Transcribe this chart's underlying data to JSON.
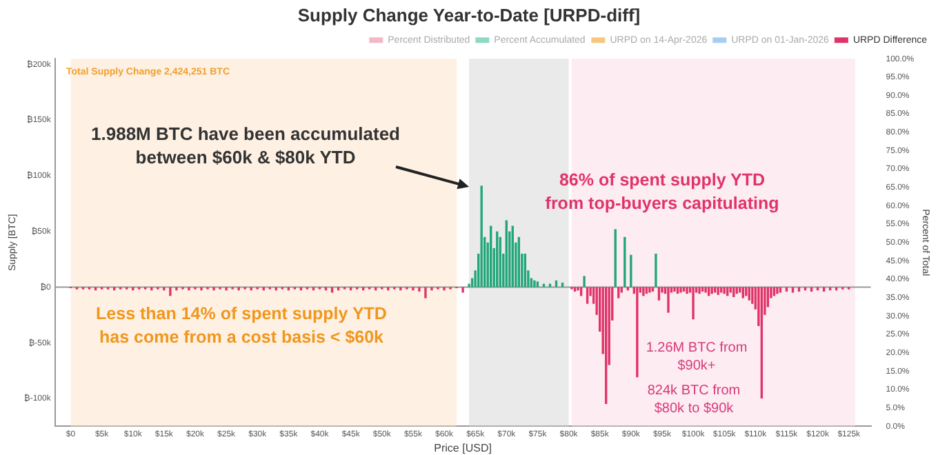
{
  "chart_data": {
    "type": "bar",
    "title": "Supply Change Year-to-Date [URPD-diff]",
    "xlabel": "Price [USD]",
    "ylabel": "Supply [BTC]",
    "y2label": "Percent of Total",
    "x": [
      0,
      1000,
      2000,
      3000,
      4000,
      5000,
      6000,
      7000,
      8000,
      9000,
      10000,
      11000,
      12000,
      13000,
      14000,
      15000,
      16000,
      17000,
      18000,
      19000,
      20000,
      21000,
      22000,
      23000,
      24000,
      25000,
      26000,
      27000,
      28000,
      29000,
      30000,
      31000,
      32000,
      33000,
      34000,
      35000,
      36000,
      37000,
      38000,
      39000,
      40000,
      41000,
      42000,
      43000,
      44000,
      45000,
      46000,
      47000,
      48000,
      49000,
      50000,
      51000,
      52000,
      53000,
      54000,
      55000,
      56000,
      57000,
      58000,
      59000,
      60000,
      61000,
      62000,
      63000,
      64000,
      64500,
      65000,
      65500,
      66000,
      66500,
      67000,
      67500,
      68000,
      68500,
      69000,
      69500,
      70000,
      70500,
      71000,
      71500,
      72000,
      72500,
      73000,
      73500,
      74000,
      74500,
      75000,
      76000,
      77000,
      78000,
      79000,
      80500,
      81000,
      81500,
      82000,
      82500,
      83000,
      83500,
      84000,
      84500,
      85000,
      85500,
      86000,
      86500,
      87000,
      87500,
      88000,
      88500,
      89000,
      89500,
      90000,
      90500,
      91000,
      91500,
      92000,
      92500,
      93000,
      93500,
      94000,
      94500,
      95000,
      95500,
      96000,
      96500,
      97000,
      97500,
      98000,
      98500,
      99000,
      99500,
      100000,
      100500,
      101000,
      101500,
      102000,
      102500,
      103000,
      103500,
      104000,
      104500,
      105000,
      105500,
      106000,
      106500,
      107000,
      107500,
      108000,
      108500,
      109000,
      109500,
      110000,
      110500,
      111000,
      111500,
      112000,
      112500,
      113000,
      113500,
      114000,
      115000,
      116000,
      117000,
      118000,
      119000,
      120000,
      121000,
      122000,
      123000,
      124000,
      125000
    ],
    "series": [
      {
        "name": "Percent Distributed",
        "type": "line",
        "color": "#f2b8c6",
        "values": [
          null,
          null,
          null,
          null,
          null,
          null,
          null,
          null,
          null,
          null,
          null,
          null,
          null,
          null,
          null,
          null,
          null,
          null,
          null,
          null,
          null,
          null,
          null,
          null,
          null,
          null,
          null,
          null,
          null,
          null,
          null,
          null,
          null,
          null,
          null,
          null,
          null,
          null,
          null,
          null,
          null,
          null,
          null,
          null,
          null,
          null,
          null,
          null,
          null,
          null,
          null,
          null,
          null,
          null,
          null,
          null,
          null,
          null,
          null,
          null,
          null,
          null,
          null,
          null,
          null,
          null,
          null,
          null,
          null,
          null,
          null,
          null,
          null,
          null,
          null,
          null,
          null,
          null,
          null,
          null,
          null,
          null,
          null,
          null,
          null,
          null,
          null,
          null,
          null,
          null,
          null,
          null,
          null,
          null,
          null,
          null,
          null,
          null,
          null,
          null,
          null,
          null,
          null,
          null,
          null,
          null,
          null,
          null,
          null,
          null,
          null,
          null,
          null,
          null,
          null,
          null,
          null,
          null,
          null,
          null,
          null,
          null,
          null,
          null,
          null,
          null,
          null,
          null,
          null,
          null,
          null,
          null,
          null,
          null,
          null,
          null,
          null,
          null,
          null,
          null,
          null,
          null,
          null,
          null,
          null,
          null,
          null,
          null,
          null,
          null,
          null,
          null,
          null,
          null,
          null,
          null,
          null,
          null,
          null,
          null,
          null,
          null,
          null,
          null,
          null,
          null,
          null,
          null,
          null,
          null
        ]
      },
      {
        "name": "Percent Accumulated",
        "type": "line",
        "color": "#8fd8c4",
        "values": [
          null,
          null,
          null,
          null,
          null,
          null,
          null,
          null,
          null,
          null,
          null,
          null,
          null,
          null,
          null,
          null,
          null,
          null,
          null,
          null,
          null,
          null,
          null,
          null,
          null,
          null,
          null,
          null,
          null,
          null,
          null,
          null,
          null,
          null,
          null,
          null,
          null,
          null,
          null,
          null,
          null,
          null,
          null,
          null,
          null,
          null,
          null,
          null,
          null,
          null,
          null,
          null,
          null,
          null,
          null,
          null,
          null,
          null,
          null,
          null,
          null,
          null,
          null,
          null,
          null,
          null,
          null,
          null,
          null,
          null,
          null,
          null,
          null,
          null,
          null,
          null,
          null,
          null,
          null,
          null,
          null,
          null,
          null,
          null,
          null,
          null,
          null,
          null,
          null,
          null,
          null,
          null,
          null,
          null,
          null,
          null,
          null,
          null,
          null,
          null,
          null,
          null,
          null,
          null,
          null,
          null,
          null,
          null,
          null,
          null,
          null,
          null,
          null,
          null,
          null,
          null,
          null,
          null,
          null,
          null,
          null,
          null,
          null,
          null,
          null,
          null,
          null,
          null,
          null,
          null,
          null,
          null,
          null,
          null,
          null,
          null,
          null,
          null,
          null,
          null,
          null,
          null,
          null,
          null,
          null,
          null,
          null,
          null,
          null,
          null,
          null,
          null,
          null,
          null,
          null,
          null,
          null,
          null,
          null,
          null,
          null,
          null,
          null,
          null,
          null,
          null,
          null,
          null,
          null,
          null
        ]
      },
      {
        "name": "URPD on 14-Apr-2026",
        "type": "line",
        "color": "#f7c77e",
        "values": [
          null,
          null,
          null,
          null,
          null,
          null,
          null,
          null,
          null,
          null,
          null,
          null,
          null,
          null,
          null,
          null,
          null,
          null,
          null,
          null,
          null,
          null,
          null,
          null,
          null,
          null,
          null,
          null,
          null,
          null,
          null,
          null,
          null,
          null,
          null,
          null,
          null,
          null,
          null,
          null,
          null,
          null,
          null,
          null,
          null,
          null,
          null,
          null,
          null,
          null,
          null,
          null,
          null,
          null,
          null,
          null,
          null,
          null,
          null,
          null,
          null,
          null,
          null,
          null,
          null,
          null,
          null,
          null,
          null,
          null,
          null,
          null,
          null,
          null,
          null,
          null,
          null,
          null,
          null,
          null,
          null,
          null,
          null,
          null,
          null,
          null,
          null,
          null,
          null,
          null,
          null,
          null,
          null,
          null,
          null,
          null,
          null,
          null,
          null,
          null,
          null,
          null,
          null,
          null,
          null,
          null,
          null,
          null,
          null,
          null,
          null,
          null,
          null,
          null,
          null,
          null,
          null,
          null,
          null,
          null,
          null,
          null,
          null,
          null,
          null,
          null,
          null,
          null,
          null,
          null,
          null,
          null,
          null,
          null,
          null,
          null,
          null,
          null,
          null,
          null,
          null,
          null,
          null,
          null,
          null,
          null,
          null,
          null,
          null,
          null,
          null,
          null,
          null,
          null,
          null,
          null,
          null,
          null,
          null,
          null,
          null,
          null,
          null,
          null,
          null,
          null,
          null,
          null,
          null,
          null
        ]
      },
      {
        "name": "URPD on 01-Jan-2026",
        "type": "line",
        "color": "#a9cdf0",
        "values": [
          null,
          null,
          null,
          null,
          null,
          null,
          null,
          null,
          null,
          null,
          null,
          null,
          null,
          null,
          null,
          null,
          null,
          null,
          null,
          null,
          null,
          null,
          null,
          null,
          null,
          null,
          null,
          null,
          null,
          null,
          null,
          null,
          null,
          null,
          null,
          null,
          null,
          null,
          null,
          null,
          null,
          null,
          null,
          null,
          null,
          null,
          null,
          null,
          null,
          null,
          null,
          null,
          null,
          null,
          null,
          null,
          null,
          null,
          null,
          null,
          null,
          null,
          null,
          null,
          null,
          null,
          null,
          null,
          null,
          null,
          null,
          null,
          null,
          null,
          null,
          null,
          null,
          null,
          null,
          null,
          null,
          null,
          null,
          null,
          null,
          null,
          null,
          null,
          null,
          null,
          null,
          null,
          null,
          null,
          null,
          null,
          null,
          null,
          null,
          null,
          null,
          null,
          null,
          null,
          null,
          null,
          null,
          null,
          null,
          null,
          null,
          null,
          null,
          null,
          null,
          null,
          null,
          null,
          null,
          null,
          null,
          null,
          null,
          null,
          null,
          null,
          null,
          null,
          null,
          null,
          null,
          null,
          null,
          null,
          null,
          null,
          null,
          null,
          null,
          null,
          null,
          null,
          null,
          null,
          null,
          null,
          null,
          null,
          null,
          null,
          null,
          null,
          null,
          null,
          null,
          null,
          null,
          null,
          null,
          null,
          null,
          null,
          null,
          null,
          null,
          null,
          null,
          null,
          null,
          null
        ]
      },
      {
        "name": "URPD Difference",
        "color": "#e0336a",
        "values": [
          -1000,
          -2000,
          -2000,
          -2000,
          -3000,
          -2000,
          -2000,
          -3000,
          -2000,
          -2000,
          -3000,
          -2000,
          -2000,
          -3000,
          -2000,
          -3000,
          -8000,
          -3000,
          -2000,
          -3000,
          -2000,
          -3000,
          -2000,
          -3000,
          -2000,
          -3000,
          -2000,
          -3000,
          -2000,
          -3000,
          -2000,
          -3000,
          -2000,
          -3000,
          -2000,
          -3000,
          -2000,
          -3000,
          -2000,
          -3000,
          -2000,
          -3000,
          -5000,
          -3000,
          -2000,
          -3000,
          -2000,
          -3000,
          -2000,
          -3000,
          -2000,
          -3000,
          -2000,
          -3000,
          -2000,
          -3000,
          -4000,
          -10000,
          -3000,
          -2000,
          -3000,
          -2000,
          -1000,
          -5000,
          3000,
          8000,
          15000,
          30000,
          91000,
          45000,
          40000,
          55000,
          35000,
          50000,
          45000,
          30000,
          60000,
          50000,
          55000,
          40000,
          45000,
          30000,
          30000,
          15000,
          8000,
          6000,
          5000,
          3000,
          3000,
          6000,
          4000,
          -2000,
          -4000,
          -3000,
          -8000,
          10000,
          -15000,
          -8000,
          -15000,
          -25000,
          -40000,
          -60000,
          -105000,
          -70000,
          -30000,
          52000,
          -10000,
          -5000,
          45000,
          -3000,
          29000,
          -6000,
          -81000,
          -5000,
          -8000,
          -6000,
          -5000,
          -4000,
          30000,
          -12000,
          -5000,
          -6000,
          -23000,
          -5000,
          -4000,
          -6000,
          -5000,
          -4000,
          -6000,
          -5000,
          -29000,
          -5000,
          -6000,
          -4000,
          -5000,
          -8000,
          -6000,
          -5000,
          -7000,
          -5000,
          -6000,
          -8000,
          -5000,
          -9000,
          -6000,
          -5000,
          -10000,
          -8000,
          -12000,
          -15000,
          -20000,
          -35000,
          -100000,
          -25000,
          -18000,
          -10000,
          -8000,
          -6000,
          -5000,
          -4000,
          -5000,
          -4000,
          -3000,
          -4000,
          -3000,
          -4000,
          -3000,
          -3000,
          -2000,
          -2000
        ],
        "colors": [
          "#e0336a",
          "#e0336a",
          "#e0336a",
          "#e0336a",
          "#e0336a",
          "#e0336a",
          "#e0336a",
          "#e0336a",
          "#e0336a",
          "#e0336a",
          "#e0336a",
          "#e0336a",
          "#e0336a",
          "#e0336a",
          "#e0336a",
          "#e0336a",
          "#e0336a",
          "#e0336a",
          "#e0336a",
          "#e0336a",
          "#e0336a",
          "#e0336a",
          "#e0336a",
          "#e0336a",
          "#e0336a",
          "#e0336a",
          "#e0336a",
          "#e0336a",
          "#e0336a",
          "#e0336a",
          "#e0336a",
          "#e0336a",
          "#e0336a",
          "#e0336a",
          "#e0336a",
          "#e0336a",
          "#e0336a",
          "#e0336a",
          "#e0336a",
          "#e0336a",
          "#e0336a",
          "#e0336a",
          "#e0336a",
          "#e0336a",
          "#e0336a",
          "#e0336a",
          "#e0336a",
          "#e0336a",
          "#e0336a",
          "#e0336a",
          "#e0336a",
          "#e0336a",
          "#e0336a",
          "#e0336a",
          "#e0336a",
          "#e0336a",
          "#e0336a",
          "#e0336a",
          "#e0336a",
          "#e0336a",
          "#e0336a",
          "#e0336a",
          "#e0336a",
          "#e0336a",
          "#21a67a",
          "#21a67a",
          "#21a67a",
          "#21a67a",
          "#21a67a",
          "#21a67a",
          "#21a67a",
          "#21a67a",
          "#21a67a",
          "#21a67a",
          "#21a67a",
          "#21a67a",
          "#21a67a",
          "#21a67a",
          "#21a67a",
          "#21a67a",
          "#21a67a",
          "#21a67a",
          "#21a67a",
          "#21a67a",
          "#21a67a",
          "#21a67a",
          "#21a67a",
          "#21a67a",
          "#21a67a",
          "#21a67a",
          "#21a67a",
          "#e0336a",
          "#e0336a",
          "#e0336a",
          "#e0336a",
          "#21a67a",
          "#e0336a",
          "#e0336a",
          "#e0336a",
          "#e0336a",
          "#e0336a",
          "#e0336a",
          "#e0336a",
          "#e0336a",
          "#e0336a",
          "#21a67a",
          "#e0336a",
          "#e0336a",
          "#21a67a",
          "#e0336a",
          "#21a67a",
          "#e0336a",
          "#e0336a",
          "#e0336a",
          "#e0336a",
          "#e0336a",
          "#e0336a",
          "#e0336a",
          "#21a67a",
          "#e0336a",
          "#e0336a",
          "#e0336a",
          "#e0336a",
          "#e0336a",
          "#e0336a",
          "#e0336a",
          "#e0336a",
          "#e0336a",
          "#e0336a",
          "#e0336a",
          "#e0336a",
          "#e0336a",
          "#e0336a",
          "#e0336a",
          "#e0336a",
          "#e0336a",
          "#e0336a",
          "#e0336a",
          "#e0336a",
          "#e0336a",
          "#e0336a",
          "#e0336a",
          "#e0336a",
          "#e0336a",
          "#e0336a",
          "#e0336a",
          "#e0336a",
          "#e0336a",
          "#e0336a",
          "#e0336a",
          "#e0336a",
          "#e0336a",
          "#e0336a",
          "#e0336a",
          "#e0336a",
          "#e0336a",
          "#e0336a",
          "#e0336a",
          "#e0336a",
          "#e0336a",
          "#e0336a",
          "#e0336a",
          "#e0336a",
          "#e0336a",
          "#e0336a",
          "#e0336a",
          "#e0336a",
          "#e0336a",
          "#e0336a",
          "#e0336a"
        ]
      }
    ],
    "xlim": [
      0,
      126000
    ],
    "xticks": [
      {
        "value": 0,
        "label": "$0"
      },
      {
        "value": 5000,
        "label": "$5k"
      },
      {
        "value": 10000,
        "label": "$10k"
      },
      {
        "value": 15000,
        "label": "$15k"
      },
      {
        "value": 20000,
        "label": "$20k"
      },
      {
        "value": 25000,
        "label": "$25k"
      },
      {
        "value": 30000,
        "label": "$30k"
      },
      {
        "value": 35000,
        "label": "$35k"
      },
      {
        "value": 40000,
        "label": "$40k"
      },
      {
        "value": 45000,
        "label": "$45k"
      },
      {
        "value": 50000,
        "label": "$50k"
      },
      {
        "value": 55000,
        "label": "$55k"
      },
      {
        "value": 60000,
        "label": "$60k"
      },
      {
        "value": 65000,
        "label": "$65k"
      },
      {
        "value": 70000,
        "label": "$70k"
      },
      {
        "value": 75000,
        "label": "$75k"
      },
      {
        "value": 80000,
        "label": "$80k"
      },
      {
        "value": 85000,
        "label": "$85k"
      },
      {
        "value": 90000,
        "label": "$90k"
      },
      {
        "value": 95000,
        "label": "$95k"
      },
      {
        "value": 100000,
        "label": "$100k"
      },
      {
        "value": 105000,
        "label": "$105k"
      },
      {
        "value": 110000,
        "label": "$110k"
      },
      {
        "value": 115000,
        "label": "$115k"
      },
      {
        "value": 120000,
        "label": "$120k"
      },
      {
        "value": 125000,
        "label": "$125k"
      }
    ],
    "ylim": [
      -125000,
      205000
    ],
    "yticks": [
      {
        "value": -100000,
        "label": "₿-100k"
      },
      {
        "value": -50000,
        "label": "₿-50k"
      },
      {
        "value": 0,
        "label": "₿0"
      },
      {
        "value": 50000,
        "label": "₿50k"
      },
      {
        "value": 100000,
        "label": "₿100k"
      },
      {
        "value": 150000,
        "label": "₿150k"
      },
      {
        "value": 200000,
        "label": "₿200k"
      }
    ],
    "y2lim": [
      0,
      100
    ],
    "y2ticks": [
      {
        "value": 0,
        "label": "0.0%"
      },
      {
        "value": 5,
        "label": "5.0%"
      },
      {
        "value": 10,
        "label": "10.0%"
      },
      {
        "value": 15,
        "label": "15.0%"
      },
      {
        "value": 20,
        "label": "20.0%"
      },
      {
        "value": 25,
        "label": "25.0%"
      },
      {
        "value": 30,
        "label": "30.0%"
      },
      {
        "value": 35,
        "label": "35.0%"
      },
      {
        "value": 40,
        "label": "40.0%"
      },
      {
        "value": 45,
        "label": "45.0%"
      },
      {
        "value": 50,
        "label": "50.0%"
      },
      {
        "value": 55,
        "label": "55.0%"
      },
      {
        "value": 60,
        "label": "60.0%"
      },
      {
        "value": 65,
        "label": "65.0%"
      },
      {
        "value": 70,
        "label": "70.0%"
      },
      {
        "value": 75,
        "label": "75.0%"
      },
      {
        "value": 80,
        "label": "80.0%"
      },
      {
        "value": 85,
        "label": "85.0%"
      },
      {
        "value": 90,
        "label": "90.0%"
      },
      {
        "value": 95,
        "label": "95.0%"
      },
      {
        "value": 100,
        "label": "100.0%"
      }
    ],
    "bands": [
      {
        "axis": "x",
        "from": 0,
        "to": 62000,
        "color": "#fde3c8"
      },
      {
        "axis": "x",
        "from": 64000,
        "to": 80000,
        "color": "#d6d6d6"
      },
      {
        "axis": "x",
        "from": 80500,
        "to": 126000,
        "color": "#fbd9e4"
      }
    ],
    "annotations": [
      "Total Supply Change 2,424,251 BTC",
      {
        "text": "1.988M BTC have been accumulated between $60k & $80k YTD",
        "x": 64000,
        "y": 90000
      },
      "86% of spent supply YTD from top-buyers capitulating",
      "Less than 14% of spent supply YTD has come from a cost basis < $60k",
      "1.26M BTC from $90k+",
      "824k BTC from $80k to $90k"
    ],
    "ref_lines": [
      {
        "axis": "y",
        "value": 0,
        "color": "#999999"
      }
    ],
    "grid": false,
    "legend": "top"
  }
}
